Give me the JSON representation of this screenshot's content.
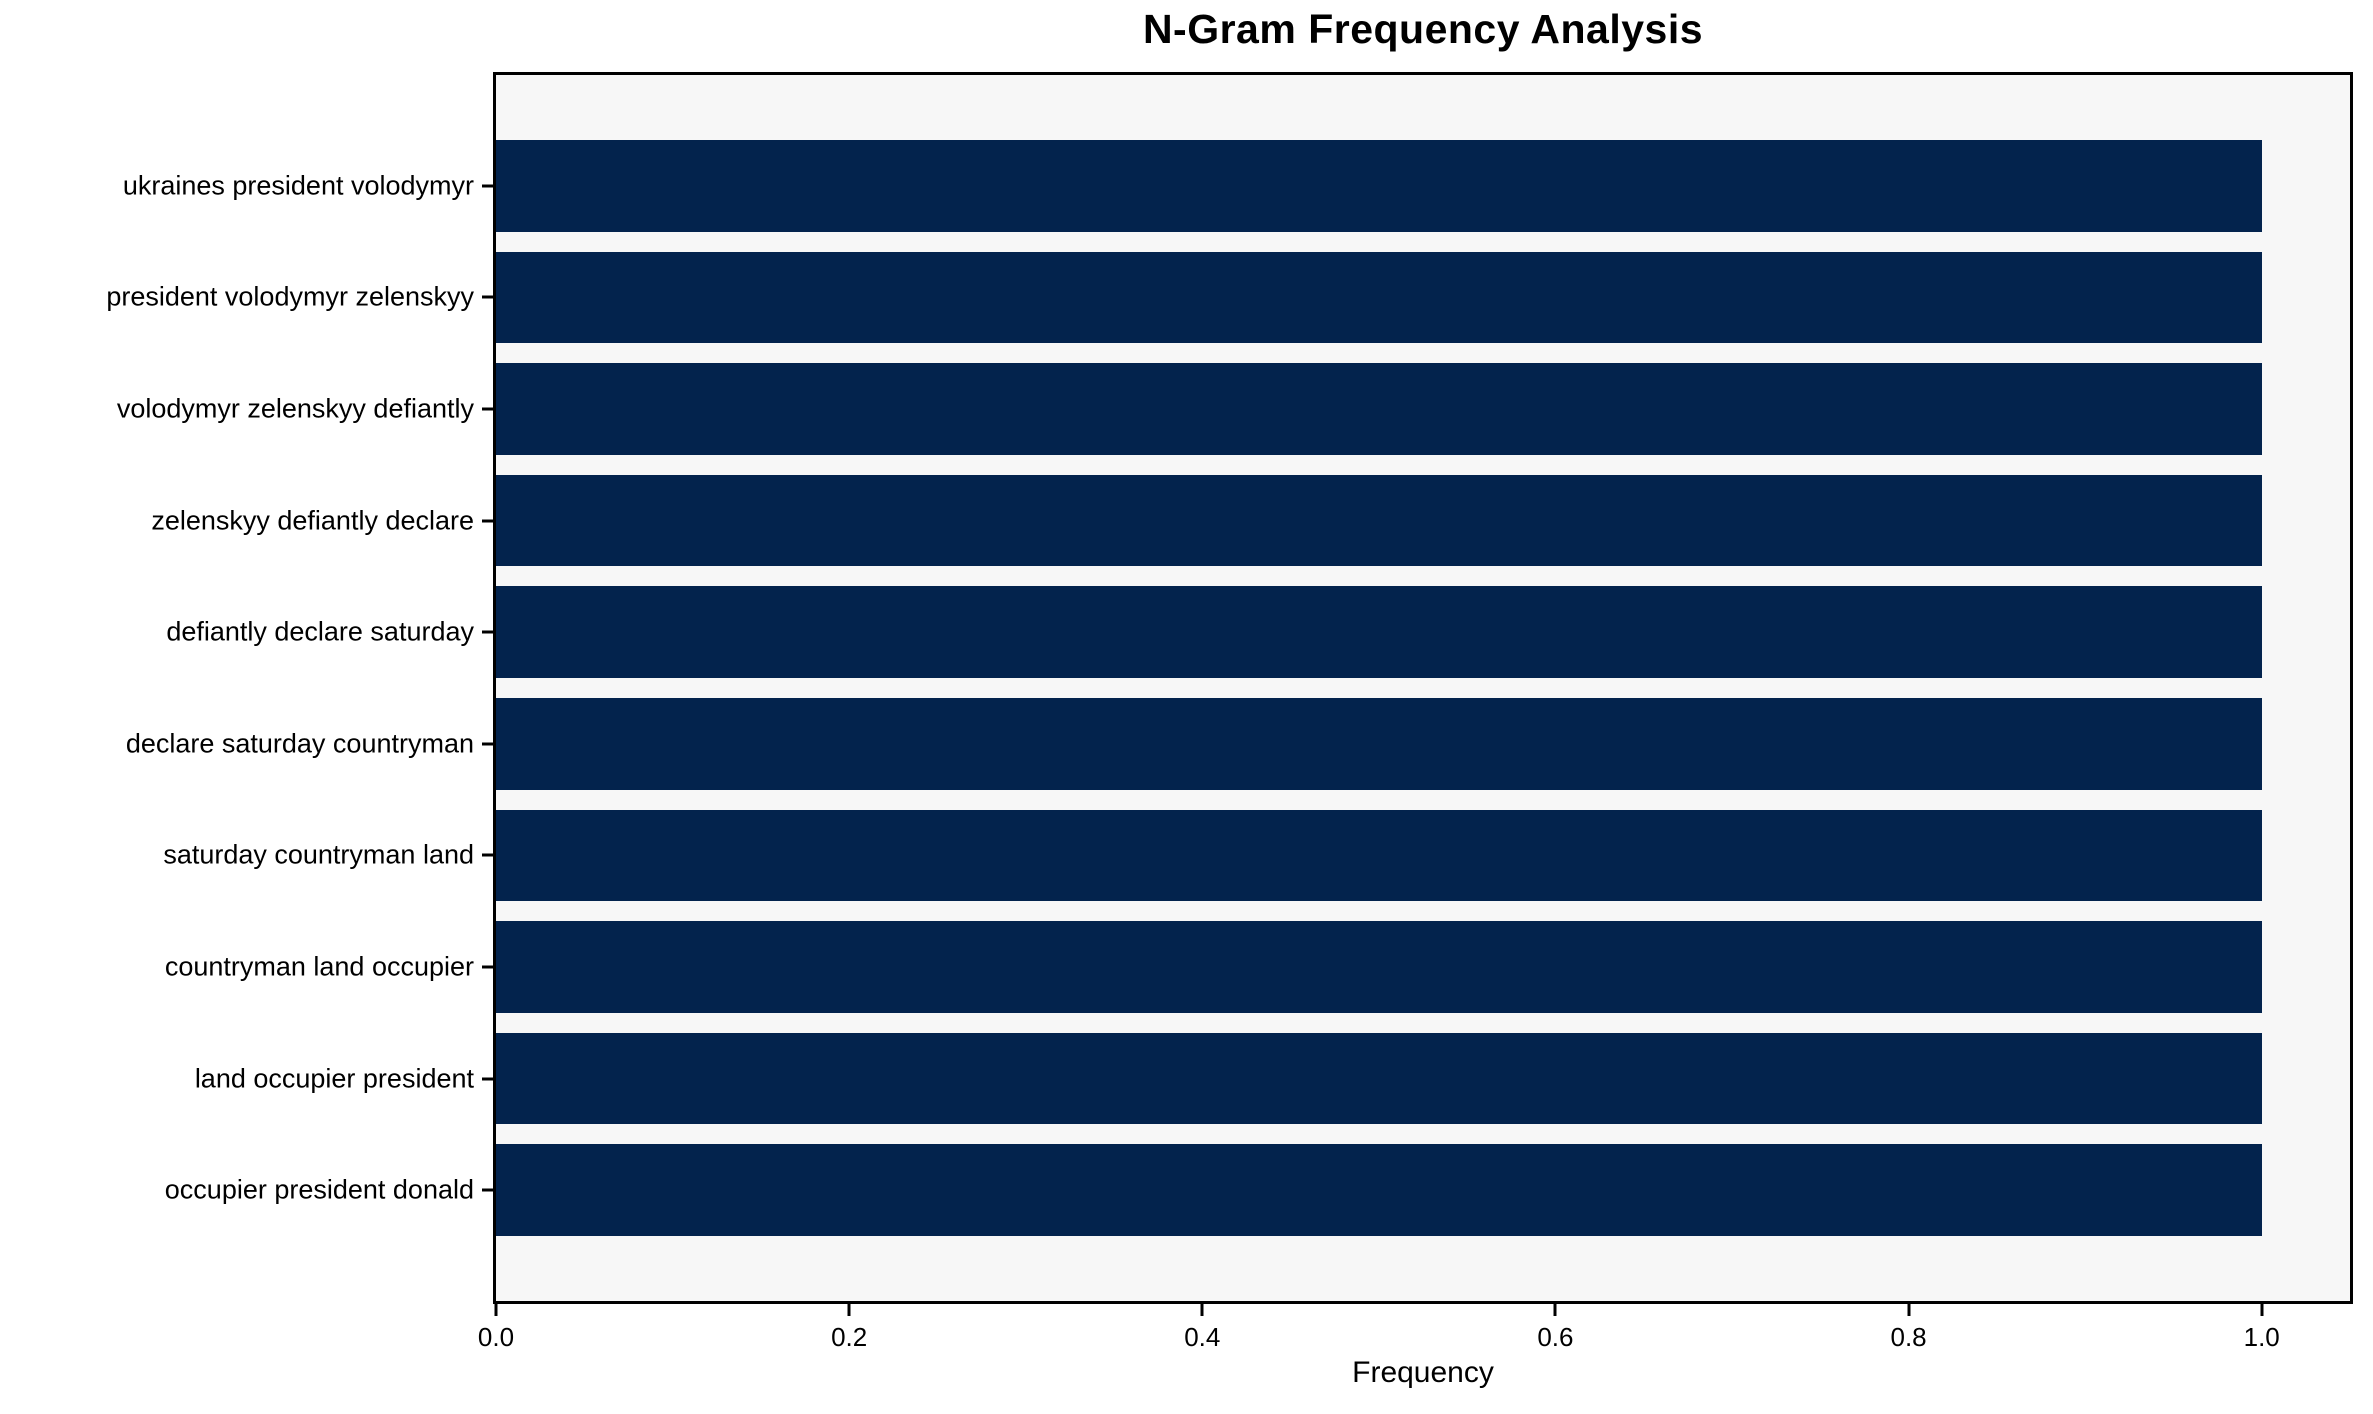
{
  "page": {
    "background_color": "#ffffff"
  },
  "chart_data": {
    "type": "bar",
    "orientation": "horizontal",
    "title": "N-Gram Frequency Analysis",
    "xlabel": "Frequency",
    "ylabel": "",
    "categories": [
      "ukraines president volodymyr",
      "president volodymyr zelenskyy",
      "volodymyr zelenskyy defiantly",
      "zelenskyy defiantly declare",
      "defiantly declare saturday",
      "declare saturday countryman",
      "saturday countryman land",
      "countryman land occupier",
      "land occupier president",
      "occupier president donald"
    ],
    "values": [
      1.0,
      1.0,
      1.0,
      1.0,
      1.0,
      1.0,
      1.0,
      1.0,
      1.0,
      1.0
    ],
    "xlim": [
      0,
      1.05
    ],
    "xticks": [
      "0.0",
      "0.2",
      "0.4",
      "0.6",
      "0.8",
      "1.0"
    ],
    "grid": false,
    "legend": "none",
    "bar_color": "#03234d",
    "plot_background": "#f7f7f7",
    "axis_color": "#000000"
  }
}
